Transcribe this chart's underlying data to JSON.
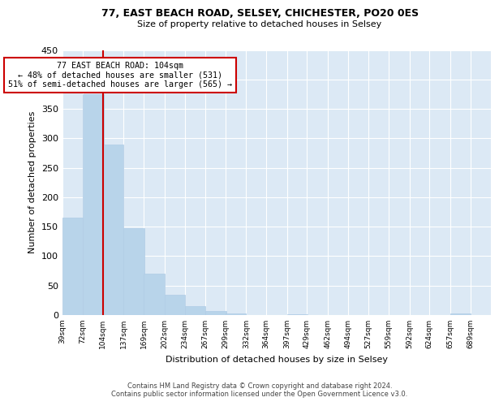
{
  "title": "77, EAST BEACH ROAD, SELSEY, CHICHESTER, PO20 0ES",
  "subtitle": "Size of property relative to detached houses in Selsey",
  "xlabel": "Distribution of detached houses by size in Selsey",
  "ylabel": "Number of detached properties",
  "footer_line1": "Contains HM Land Registry data © Crown copyright and database right 2024.",
  "footer_line2": "Contains public sector information licensed under the Open Government Licence v3.0.",
  "bar_edges": [
    39,
    72,
    104,
    137,
    169,
    202,
    234,
    267,
    299,
    332,
    364,
    397,
    429,
    462,
    494,
    527,
    559,
    592,
    624,
    657,
    689
  ],
  "bar_heights": [
    165,
    375,
    290,
    148,
    70,
    35,
    15,
    7,
    2,
    0,
    0,
    1,
    0,
    0,
    0,
    0,
    0,
    0,
    0,
    2
  ],
  "bar_color": "#b8d4ea",
  "bar_edge_color": "#b0cce5",
  "vline_x": 104,
  "vline_color": "#cc0000",
  "annotation_title": "77 EAST BEACH ROAD: 104sqm",
  "annotation_line1": "← 48% of detached houses are smaller (531)",
  "annotation_line2": "51% of semi-detached houses are larger (565) →",
  "annotation_box_color": "#ffffff",
  "annotation_box_edge": "#cc0000",
  "ylim": [
    0,
    450
  ],
  "xlim_left": 39,
  "xlim_right": 722,
  "tick_labels": [
    "39sqm",
    "72sqm",
    "104sqm",
    "137sqm",
    "169sqm",
    "202sqm",
    "234sqm",
    "267sqm",
    "299sqm",
    "332sqm",
    "364sqm",
    "397sqm",
    "429sqm",
    "462sqm",
    "494sqm",
    "527sqm",
    "559sqm",
    "592sqm",
    "624sqm",
    "657sqm",
    "689sqm"
  ],
  "yticks": [
    0,
    50,
    100,
    150,
    200,
    250,
    300,
    350,
    400,
    450
  ],
  "bg_color": "#dce9f5",
  "grid_color": "#ffffff",
  "title_fontsize": 9,
  "subtitle_fontsize": 8,
  "ylabel_fontsize": 8,
  "xlabel_fontsize": 8,
  "tick_fontsize": 6.5,
  "footer_fontsize": 6
}
